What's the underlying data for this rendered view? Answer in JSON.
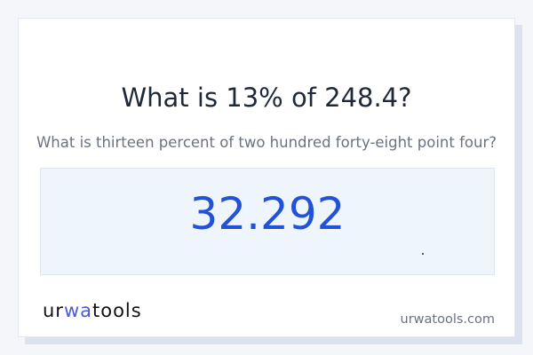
{
  "title": "What is 13% of 248.4?",
  "subtitle": "What is thirteen percent of two hundred forty-eight point four?",
  "answer": "32.292",
  "logo": {
    "part1": "ur",
    "part2": "wa",
    "part3": "tools"
  },
  "site": "urwatools.com",
  "colors": {
    "accent": "#2352d6",
    "answer_bg": "#eef5fd",
    "logo_accent": "#4a5ad8"
  }
}
